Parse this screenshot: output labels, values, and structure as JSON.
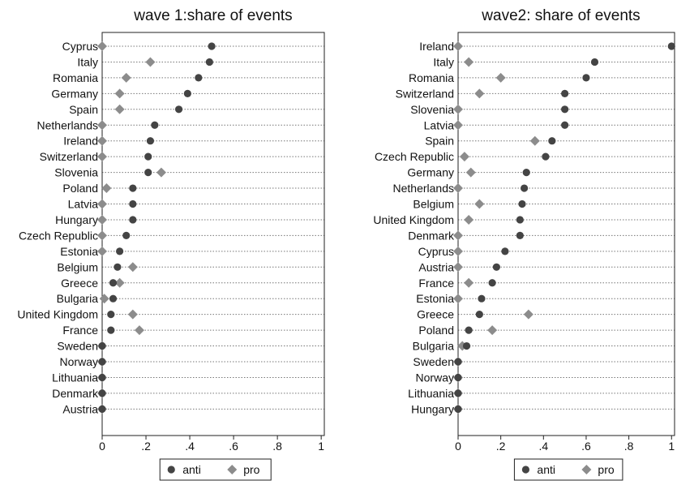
{
  "colors": {
    "anti": "#444444",
    "pro": "#8c8c8c",
    "frame": "#222222",
    "grid": "#777777"
  },
  "legend": {
    "anti": "anti",
    "pro": "pro"
  },
  "chart_data": [
    {
      "type": "scatter",
      "title": "wave 1:share of events",
      "xlabel": "",
      "ylabel": "",
      "xlim": [
        0,
        1
      ],
      "xticks": [
        "0",
        ".2",
        ".4",
        ".6",
        ".8",
        "1"
      ],
      "legend_position": "bottom",
      "categories": [
        "Cyprus",
        "Italy",
        "Romania",
        "Germany",
        "Spain",
        "Netherlands",
        "Ireland",
        "Switzerland",
        "Slovenia",
        "Poland",
        "Latvia",
        "Hungary",
        "Czech Republic",
        "Estonia",
        "Belgium",
        "Greece",
        "Bulgaria",
        "United Kingdom",
        "France",
        "Sweden",
        "Norway",
        "Lithuania",
        "Denmark",
        "Austria"
      ],
      "series": [
        {
          "name": "anti",
          "values": [
            0.5,
            0.49,
            0.44,
            0.39,
            0.35,
            0.24,
            0.22,
            0.21,
            0.21,
            0.14,
            0.14,
            0.14,
            0.11,
            0.08,
            0.07,
            0.05,
            0.05,
            0.04,
            0.04,
            0,
            0,
            0,
            0,
            0
          ]
        },
        {
          "name": "pro",
          "values": [
            0,
            0.22,
            0.11,
            0.08,
            0.08,
            0,
            0,
            0,
            0.27,
            0.02,
            0,
            0,
            0,
            0,
            0.14,
            0.08,
            0.01,
            0.14,
            0.17,
            0,
            0,
            0,
            0,
            0
          ]
        }
      ]
    },
    {
      "type": "scatter",
      "title": "wave2: share of events",
      "xlabel": "",
      "ylabel": "",
      "xlim": [
        0,
        1
      ],
      "xticks": [
        "0",
        ".2",
        ".4",
        ".6",
        ".8",
        "1"
      ],
      "legend_position": "bottom",
      "categories": [
        "Ireland",
        "Italy",
        "Romania",
        "Switzerland",
        "Slovenia",
        "Latvia",
        "Spain",
        "Czech Republic",
        "Germany",
        "Netherlands",
        "Belgium",
        "United Kingdom",
        "Denmark",
        "Cyprus",
        "Austria",
        "France",
        "Estonia",
        "Greece",
        "Poland",
        "Bulgaria",
        "Sweden",
        "Norway",
        "Lithuania",
        "Hungary"
      ],
      "series": [
        {
          "name": "anti",
          "values": [
            1,
            0.64,
            0.6,
            0.5,
            0.5,
            0.5,
            0.44,
            0.41,
            0.32,
            0.31,
            0.3,
            0.29,
            0.29,
            0.22,
            0.18,
            0.16,
            0.11,
            0.1,
            0.05,
            0.04,
            0,
            0,
            0,
            0
          ]
        },
        {
          "name": "pro",
          "values": [
            0,
            0.05,
            0.2,
            0.1,
            0,
            0,
            0.36,
            0.03,
            0.06,
            0,
            0.1,
            0.05,
            0,
            0,
            0,
            0.05,
            0,
            0.33,
            0.16,
            0.02,
            0,
            0,
            0,
            0
          ]
        }
      ]
    }
  ]
}
